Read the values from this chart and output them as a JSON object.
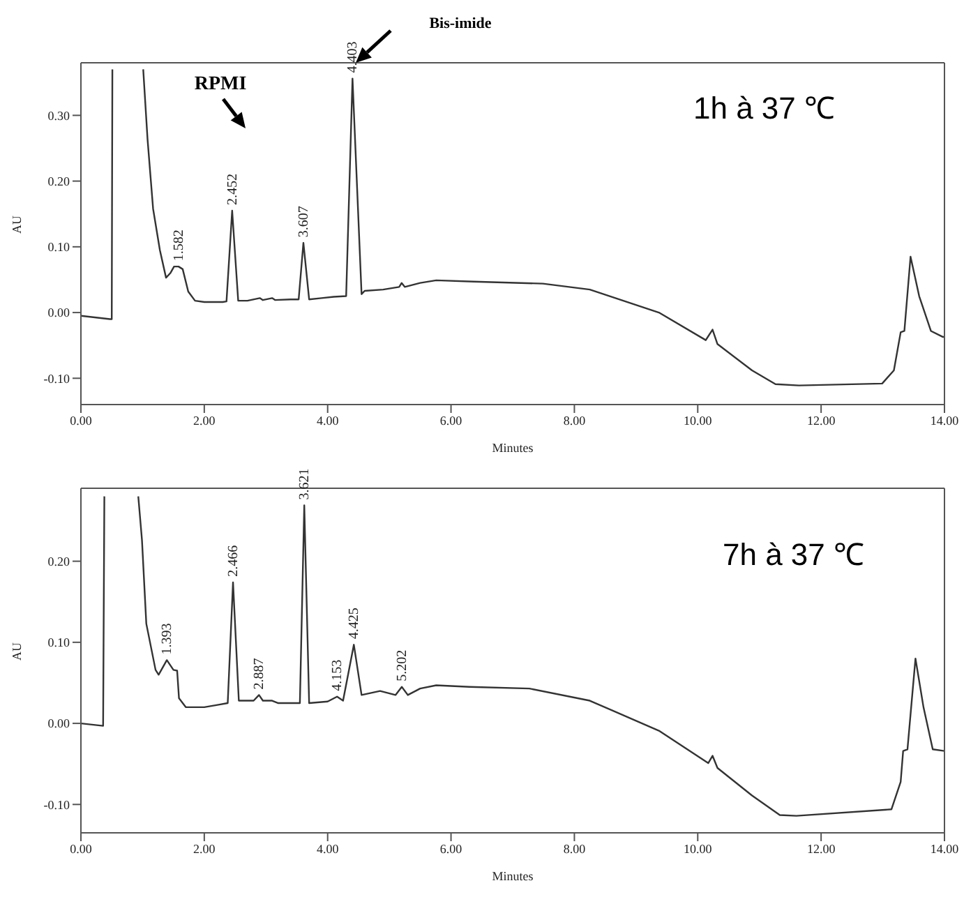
{
  "chart_data": [
    {
      "type": "line",
      "xlabel": "Minutes",
      "ylabel": "AU",
      "xlim": [
        0,
        14
      ],
      "ylim": [
        -0.14,
        0.38
      ],
      "xticks": [
        {
          "value": 0,
          "label": "0.00"
        },
        {
          "value": 2,
          "label": "2.00"
        },
        {
          "value": 4,
          "label": "4.00"
        },
        {
          "value": 6,
          "label": "6.00"
        },
        {
          "value": 8,
          "label": "8.00"
        },
        {
          "value": 10,
          "label": "10.00"
        },
        {
          "value": 12,
          "label": "12.00"
        },
        {
          "value": 14,
          "label": "14.00"
        }
      ],
      "yticks": [
        {
          "value": -0.1,
          "label": "-0.10"
        },
        {
          "value": 0,
          "label": "0.00"
        },
        {
          "value": 0.1,
          "label": "0.10"
        },
        {
          "value": 0.2,
          "label": "0.20"
        },
        {
          "value": 0.3,
          "label": "0.30"
        }
      ],
      "series": [
        {
          "color": "#333333",
          "x": [
            0,
            0.47,
            0.5,
            0.51,
            0.75,
            1.01,
            1.08,
            1.17,
            1.28,
            1.38,
            1.45,
            1.51,
            1.582,
            1.65,
            1.74,
            1.85,
            2.0,
            2.3,
            2.36,
            2.452,
            2.55,
            2.7,
            2.9,
            2.95,
            3.1,
            3.15,
            3.4,
            3.53,
            3.607,
            3.7,
            3.9,
            4.1,
            4.3,
            4.403,
            4.55,
            4.6,
            4.9,
            5.16,
            5.2,
            5.25,
            5.5,
            5.76,
            6.37,
            7.49,
            8.25,
            9.37,
            10.13,
            10.24,
            10.32,
            10.88,
            11.26,
            11.64,
            12.99,
            13.18,
            13.29,
            13.35,
            13.45,
            13.59,
            13.78,
            13.97,
            14.0
          ],
          "values": [
            -0.005,
            -0.01,
            -0.01,
            0.37,
            null,
            0.37,
            0.264,
            0.158,
            0.095,
            0.053,
            0.06,
            0.07,
            0.07,
            0.066,
            0.032,
            0.018,
            0.016,
            0.016,
            0.017,
            0.155,
            0.018,
            0.018,
            0.022,
            0.019,
            0.022,
            0.019,
            0.02,
            0.02,
            0.106,
            0.02,
            0.022,
            0.024,
            0.025,
            0.356,
            0.028,
            0.033,
            0.035,
            0.039,
            0.045,
            0.039,
            0.045,
            0.049,
            0.047,
            0.044,
            0.035,
            0.0,
            -0.042,
            -0.026,
            -0.048,
            -0.088,
            -0.109,
            -0.111,
            -0.108,
            -0.088,
            -0.03,
            -0.028,
            0.085,
            0.025,
            -0.028,
            -0.037,
            -0.037
          ]
        }
      ],
      "annotations": [
        "RPMI",
        "Bis-imide",
        "1h à 37 ℃",
        {
          "text": "1.582",
          "x": 1.582,
          "y": 0.07
        },
        {
          "text": "2.452",
          "x": 2.452,
          "y": 0.155
        },
        {
          "text": "3.607",
          "x": 3.607,
          "y": 0.106
        },
        {
          "text": "4.403",
          "x": 4.403,
          "y": 0.356
        }
      ]
    },
    {
      "type": "line",
      "xlabel": "Minutes",
      "ylabel": "AU",
      "xlim": [
        0,
        14
      ],
      "ylim": [
        -0.135,
        0.29
      ],
      "xticks": [
        {
          "value": 0,
          "label": "0.00"
        },
        {
          "value": 2,
          "label": "2.00"
        },
        {
          "value": 4,
          "label": "4.00"
        },
        {
          "value": 6,
          "label": "6.00"
        },
        {
          "value": 8,
          "label": "8.00"
        },
        {
          "value": 10,
          "label": "10.00"
        },
        {
          "value": 12,
          "label": "12.00"
        },
        {
          "value": 14,
          "label": "14.00"
        }
      ],
      "yticks": [
        {
          "value": -0.1,
          "label": "-0.10"
        },
        {
          "value": 0,
          "label": "0.00"
        },
        {
          "value": 0.1,
          "label": "0.10"
        },
        {
          "value": 0.2,
          "label": "0.20"
        }
      ],
      "series": [
        {
          "color": "#333333",
          "x": [
            0,
            0.36,
            0.38,
            0.65,
            0.93,
            0.99,
            1.06,
            1.21,
            1.26,
            1.393,
            1.5,
            1.56,
            1.59,
            1.7,
            2.0,
            2.23,
            2.38,
            2.466,
            2.56,
            2.8,
            2.887,
            2.95,
            3.1,
            3.2,
            3.4,
            3.55,
            3.621,
            3.7,
            4.0,
            4.153,
            4.25,
            4.425,
            4.55,
            4.85,
            5.1,
            5.202,
            5.3,
            5.5,
            5.76,
            6.3,
            7.27,
            8.25,
            9.37,
            10.17,
            10.24,
            10.32,
            10.88,
            11.33,
            11.6,
            13.14,
            13.29,
            13.33,
            13.4,
            13.53,
            13.66,
            13.81,
            14.0
          ],
          "values": [
            0.0,
            -0.003,
            0.28,
            null,
            0.28,
            0.226,
            0.123,
            0.066,
            0.06,
            0.078,
            0.066,
            0.065,
            0.031,
            0.02,
            0.02,
            0.023,
            0.025,
            0.174,
            0.028,
            0.028,
            0.035,
            0.028,
            0.028,
            0.025,
            0.025,
            0.025,
            0.269,
            0.025,
            0.027,
            0.033,
            0.028,
            0.097,
            0.035,
            0.04,
            0.035,
            0.045,
            0.035,
            0.043,
            0.047,
            0.045,
            0.043,
            0.028,
            -0.009,
            -0.049,
            -0.04,
            -0.055,
            -0.089,
            -0.113,
            -0.114,
            -0.106,
            -0.072,
            -0.034,
            -0.032,
            0.08,
            0.02,
            -0.032,
            -0.034
          ]
        }
      ],
      "annotations": [
        "7h à 37 ℃",
        {
          "text": "1.393",
          "x": 1.393,
          "y": 0.078
        },
        {
          "text": "2.466",
          "x": 2.466,
          "y": 0.174
        },
        {
          "text": "2.887",
          "x": 2.887,
          "y": 0.035
        },
        {
          "text": "3.621",
          "x": 3.621,
          "y": 0.269
        },
        {
          "text": "4.153",
          "x": 4.153,
          "y": 0.033
        },
        {
          "text": "4.425",
          "x": 4.425,
          "y": 0.097
        },
        {
          "text": "5.202",
          "x": 5.202,
          "y": 0.045
        }
      ]
    }
  ]
}
